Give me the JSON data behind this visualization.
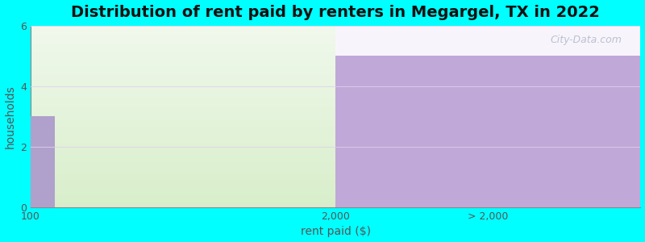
{
  "title": "Distribution of rent paid by renters in Megargel, TX in 2022",
  "xlabel": "rent paid ($)",
  "ylabel": "households",
  "background_color": "#00FFFF",
  "bar_values": [
    3,
    5
  ],
  "bar_colors": [
    "#b8a0d0",
    "#c0a8d8"
  ],
  "left_bg_top": "#f0f8ec",
  "left_bg_bottom": "#d8eeca",
  "right_bg_top": "#f5f0fa",
  "ylim": [
    0,
    6
  ],
  "yticks": [
    0,
    2,
    4,
    6
  ],
  "xtick_positions": [
    0,
    1.0,
    1.5
  ],
  "xtick_labels": [
    "100",
    "2,000",
    "> 2,000"
  ],
  "title_fontsize": 14,
  "axis_label_fontsize": 10,
  "tick_fontsize": 9,
  "watermark": "City-Data.com",
  "grid_color": "#e0d0e8",
  "grid_alpha": 0.8,
  "left_bar_x": 0.0,
  "left_bar_width": 0.08,
  "right_bar_x": 1.0,
  "right_bar_width": 1.0,
  "xlim": [
    0,
    2
  ]
}
